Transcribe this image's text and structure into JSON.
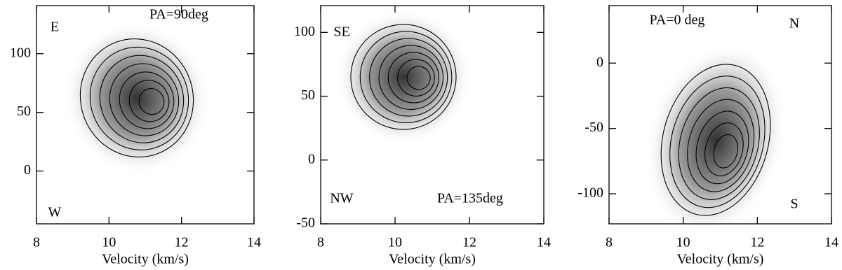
{
  "chart_data": [
    {
      "type": "contour",
      "xlabel": "Velocity (km/s)",
      "xlim": [
        8,
        14
      ],
      "xticks": [
        8,
        10,
        12,
        14
      ],
      "ylim": [
        -45,
        141
      ],
      "yticks": [
        0,
        50,
        100
      ],
      "annotations": [
        "E",
        "PA=90deg",
        "W"
      ]
    },
    {
      "type": "contour",
      "xlabel": "Velocity (km/s)",
      "xlim": [
        8,
        14
      ],
      "xticks": [
        8,
        10,
        12,
        14
      ],
      "ylim": [
        -50,
        121
      ],
      "yticks": [
        -50,
        0,
        50,
        100
      ],
      "annotations": [
        "SE",
        "NW",
        "PA=135deg"
      ]
    },
    {
      "type": "contour",
      "xlabel": "Velocity (km/s)",
      "xlim": [
        8,
        14
      ],
      "xticks": [
        8,
        10,
        12,
        14
      ],
      "ylim": [
        -123,
        44
      ],
      "yticks": [
        -100,
        -50,
        0
      ],
      "annotations": [
        "PA=0 deg",
        "N",
        "S"
      ]
    }
  ]
}
